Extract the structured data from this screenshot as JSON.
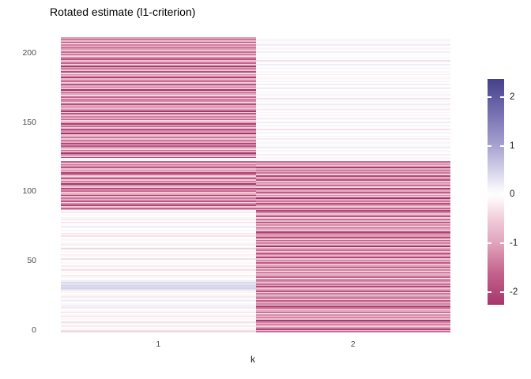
{
  "title": "Rotated estimate (l1-criterion)",
  "chart_data": {
    "type": "heatmap",
    "title": "Rotated estimate (l1-criterion)",
    "xlabel": "k",
    "ylabel": "",
    "categories_x": [
      "1",
      "2"
    ],
    "y_ticks": [
      0,
      50,
      100,
      150,
      200
    ],
    "rows": 210,
    "ylim": [
      0,
      211
    ],
    "grid": false,
    "legend_position": "right",
    "color_scale": {
      "type": "diverging",
      "legend_ticks": [
        2,
        1,
        0,
        -1,
        -2
      ],
      "legend_range": [
        -2.26,
        2.37
      ],
      "stops": [
        [
          -2.4,
          "#A02C64"
        ],
        [
          -1.6,
          "#C4638D"
        ],
        [
          -1.0,
          "#E0A4BB"
        ],
        [
          -0.5,
          "#F0CCD9"
        ],
        [
          -0.15,
          "#FBF1F4"
        ],
        [
          0,
          "#FFFFFF"
        ],
        [
          0.15,
          "#F4F3F9"
        ],
        [
          0.5,
          "#D4D1E9"
        ],
        [
          1.0,
          "#A8A2D2"
        ],
        [
          1.6,
          "#7B75B5"
        ],
        [
          2.4,
          "#433D8B"
        ]
      ]
    },
    "series": [
      {
        "name": "1",
        "values": [
          -0.4,
          -0.3,
          -0.1,
          0,
          -0.2,
          0,
          -0.1,
          -0.3,
          0,
          -0.1,
          0,
          -0.2,
          -0.1,
          0,
          -0.3,
          -0.1,
          0,
          0.2,
          -0.2,
          0.1,
          -0.1,
          0,
          0.2,
          -0.1,
          0,
          -0.2,
          -0.1,
          0,
          -0.1,
          0.1,
          0.3,
          0.5,
          0.4,
          0.5,
          0.3,
          0.4,
          0.2,
          0.1,
          0,
          -0.1,
          -0.2,
          0,
          -0.1,
          0,
          -0.3,
          -0.1,
          0,
          -0.2,
          0,
          -0.1,
          0,
          -0.1,
          -0.3,
          0,
          -0.1,
          -0.2,
          0,
          -0.1,
          0,
          -0.4,
          -0.1,
          0,
          -0.2,
          -0.1,
          0,
          0.1,
          -0.1,
          0,
          -0.3,
          -0.1,
          -0.2,
          0,
          -0.1,
          0,
          -0.1,
          0.2,
          0,
          -0.1,
          -0.3,
          0,
          -0.2,
          -0.1,
          0,
          -0.1,
          0,
          -0.2,
          -0.1,
          -0.8,
          -1.6,
          -0.5,
          -2,
          -1.2,
          -0.4,
          -1.8,
          -0.9,
          -1.4,
          -0.6,
          -2.1,
          -1,
          -0.5,
          -1.5,
          -0.8,
          -1.9,
          -0.6,
          -1.1,
          -2.2,
          -0.7,
          -1.3,
          -0.5,
          -1.7,
          -0.9,
          -0.4,
          -1.5,
          -2,
          -0.8,
          -1.2,
          -0.6,
          -1.8,
          -1,
          -1.4,
          -0.7,
          -1.6,
          0,
          -0.1,
          -1.9,
          -0.6,
          -1.3,
          -2.2,
          -0.8,
          -1.5,
          -0.4,
          -1.1,
          -1.8,
          -0.6,
          -2,
          -0.9,
          -1.4,
          -0.5,
          -1.7,
          -1,
          -0.6,
          -2.3,
          -0.8,
          -1.2,
          -1.9,
          -0.5,
          -1.5,
          -0.7,
          -2.1,
          -1,
          -0.4,
          -1.6,
          -0.9,
          -1.3,
          -0.6,
          -1.8,
          -0.5,
          -2.2,
          -1.1,
          -0.7,
          -1.4,
          -0.9,
          -1.9,
          -0.5,
          -1.2,
          -2,
          -0.7,
          -1.6,
          -0.4,
          -1,
          -1.7,
          -0.8,
          -2.3,
          -0.6,
          -1.3,
          -0.9,
          -1.8,
          -0.5,
          -1.5,
          -1.1,
          -0.7,
          -2.1,
          -0.8,
          -1.2,
          -0.4,
          -1.9,
          -0.6,
          -1.4,
          -1,
          -2.2,
          -0.5,
          -1.6,
          -0.9,
          -0.7,
          -1.8,
          -1.2,
          -0.4,
          -2,
          -0.8,
          -1.5,
          -0.6,
          -1.1,
          -1.7,
          -0.9,
          -1.3,
          -0.5,
          -2.1,
          -0.7,
          -1.4,
          -1
        ]
      },
      {
        "name": "2",
        "values": [
          -1.5,
          -0.7,
          -2,
          -1.1,
          -0.5,
          -1.8,
          -0.9,
          -1.3,
          -2.2,
          -0.6,
          -1.6,
          -0.8,
          -1.2,
          -0.4,
          -1.9,
          -1,
          -0.7,
          -1.5,
          -2.1,
          -0.5,
          -1.3,
          -0.9,
          -1.7,
          -0.6,
          -2.3,
          -1.1,
          -0.8,
          -1.4,
          -0.5,
          -1.8,
          -1,
          -0.6,
          -2,
          -0.9,
          -1.5,
          -0.7,
          -1.2,
          -2.2,
          -0.4,
          -1.6,
          -1,
          -0.8,
          -1.9,
          -0.5,
          -1.3,
          -0.7,
          -2.1,
          -1.1,
          -0.6,
          -1.7,
          -0.9,
          -1.4,
          -0.5,
          -2,
          -0.8,
          -1.2,
          -1.8,
          -0.6,
          -1.5,
          -1,
          -0.4,
          -2.3,
          -0.7,
          -1.3,
          -0.9,
          -1.6,
          -0.5,
          -1.9,
          -1.1,
          -0.8,
          -1.4,
          -2.1,
          -0.6,
          -1,
          -1.7,
          -0.5,
          -1.2,
          -0.9,
          -2.2,
          -0.7,
          -1.5,
          -0.4,
          -1.8,
          -1,
          -0.6,
          -1.3,
          -2,
          -0.8,
          -1.6,
          -0.5,
          -1.1,
          -1.9,
          -0.7,
          -1.4,
          -0.9,
          -2.3,
          -0.6,
          -1.2,
          -0.5,
          -1.7,
          -1,
          -0.8,
          -2.1,
          -0.4,
          -1.5,
          -0.9,
          -1.3,
          -0.6,
          -1.8,
          -1.1,
          -0.7,
          -2,
          -0.5,
          -1.4,
          -1,
          -1.6,
          -0.8,
          -2.2,
          -0.6,
          -1.2,
          -0.9,
          -1.5,
          0,
          -0.1,
          0.1,
          0,
          -0.2,
          0,
          0.1,
          -0.1,
          0,
          0.2,
          -0.1,
          0,
          -0.1,
          0.1,
          0,
          -0.2,
          0,
          -0.1,
          0,
          0.1,
          -0.1,
          0,
          -0.3,
          0,
          0.1,
          -0.1,
          0,
          0.2,
          0,
          -0.1,
          -0.2,
          0,
          0.1,
          0,
          -0.1,
          0,
          -0.2,
          0.1,
          0,
          -0.1,
          0.2,
          0,
          -0.1,
          0,
          -0.3,
          0,
          0.1,
          -0.1,
          0,
          -0.1,
          0,
          0.2,
          -0.1,
          0,
          -0.2,
          0,
          0.1,
          0,
          -0.1,
          0.1,
          0,
          -0.2,
          0,
          -0.1,
          0,
          0.1,
          -0.1,
          0,
          0.2,
          0,
          -0.1,
          -0.3,
          0,
          0.1,
          0,
          -0.1,
          0,
          -0.2,
          0,
          0.1,
          -0.1,
          0,
          0.2,
          -0.1,
          0,
          -0.1,
          0.1,
          0
        ]
      }
    ]
  }
}
